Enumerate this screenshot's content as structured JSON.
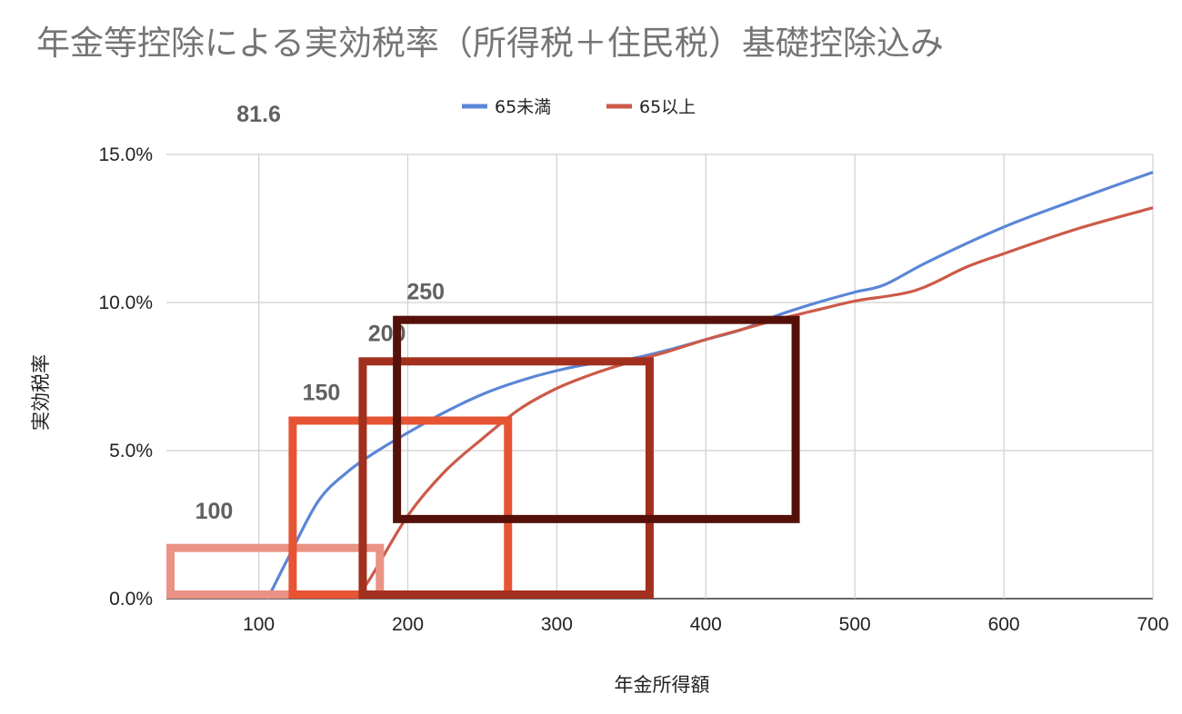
{
  "chart_data": {
    "type": "line",
    "title": "年金等控除による実効税率（所得税＋住民税）基礎控除込み",
    "xlabel": "年金所得額",
    "ylabel": "実効税率",
    "xlim": [
      38,
      700
    ],
    "ylim": [
      0,
      15
    ],
    "x_ticks": [
      100,
      200,
      300,
      400,
      500,
      600,
      700
    ],
    "x_tick_labels": [
      "100",
      "200",
      "300",
      "400",
      "500",
      "600",
      "700"
    ],
    "y_ticks": [
      0,
      5,
      10,
      15
    ],
    "y_tick_labels": [
      "0.0%",
      "5.0%",
      "10.0%",
      "15.0%"
    ],
    "grid": true,
    "legend_position": "top",
    "series": [
      {
        "name": "65未満",
        "color": "#5b86d6",
        "points": [
          [
            106,
            0
          ],
          [
            120,
            1.4
          ],
          [
            140,
            3.3
          ],
          [
            160,
            4.3
          ],
          [
            180,
            5.0
          ],
          [
            200,
            5.6
          ],
          [
            225,
            6.3
          ],
          [
            250,
            6.9
          ],
          [
            275,
            7.35
          ],
          [
            300,
            7.7
          ],
          [
            325,
            7.95
          ],
          [
            350,
            8.1
          ],
          [
            375,
            8.4
          ],
          [
            400,
            8.75
          ],
          [
            425,
            9.1
          ],
          [
            450,
            9.6
          ],
          [
            475,
            10.0
          ],
          [
            500,
            10.35
          ],
          [
            520,
            10.6
          ],
          [
            550,
            11.4
          ],
          [
            600,
            12.55
          ],
          [
            650,
            13.5
          ],
          [
            700,
            14.4
          ]
        ]
      },
      {
        "name": "65以上",
        "color": "#cc5a49",
        "points": [
          [
            165,
            0
          ],
          [
            175,
            0.7
          ],
          [
            200,
            2.8
          ],
          [
            225,
            4.3
          ],
          [
            250,
            5.4
          ],
          [
            275,
            6.4
          ],
          [
            300,
            7.1
          ],
          [
            325,
            7.6
          ],
          [
            350,
            8.0
          ],
          [
            375,
            8.35
          ],
          [
            400,
            8.75
          ],
          [
            425,
            9.1
          ],
          [
            450,
            9.45
          ],
          [
            475,
            9.75
          ],
          [
            500,
            10.05
          ],
          [
            540,
            10.4
          ],
          [
            575,
            11.2
          ],
          [
            600,
            11.65
          ],
          [
            650,
            12.5
          ],
          [
            700,
            13.2
          ]
        ]
      }
    ],
    "annotations": [
      {
        "label": "81.6",
        "color": "",
        "x1": null,
        "x2": null,
        "y1": null,
        "y2": null,
        "label_x": 100,
        "label_y": 16.1
      },
      {
        "label": "100",
        "color": "#ea9285",
        "x1": 38,
        "x2": 184,
        "y1": 0,
        "y2": 1.85,
        "label_x": 70,
        "label_y": 2.7
      },
      {
        "label": "150",
        "color": "#e65434",
        "x1": 120,
        "x2": 270,
        "y1": 0,
        "y2": 6.15,
        "label_x": 142,
        "label_y": 6.7
      },
      {
        "label": "200",
        "color": "#a2301e",
        "x1": 167,
        "x2": 365,
        "y1": 0,
        "y2": 8.15,
        "label_x": 186,
        "label_y": 8.7
      },
      {
        "label": "250",
        "color": "#551109",
        "x1": 190,
        "x2": 463,
        "y1": 2.55,
        "y2": 9.55,
        "label_x": 212,
        "label_y": 10.1
      }
    ]
  }
}
